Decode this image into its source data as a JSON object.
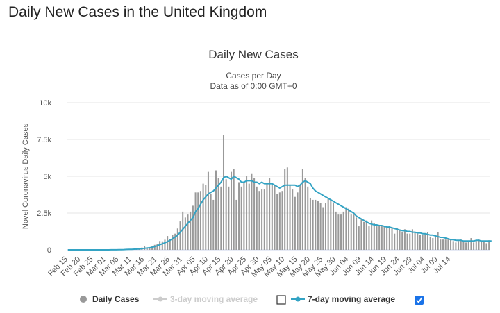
{
  "page": {
    "heading": "Daily New Cases in the United Kingdom"
  },
  "chart_data": {
    "type": "bar",
    "title": "Daily New Cases",
    "subtitle": "Cases per Day",
    "subtitle2": "Data as of 0:00 GMT+0",
    "ylabel": "Novel Coronavirus Daily Cases",
    "xlabel": "",
    "ylim": [
      0,
      10000
    ],
    "y_ticks": [
      0,
      2500,
      5000,
      7500,
      10000
    ],
    "y_tick_labels": [
      "0",
      "2.5k",
      "5k",
      "7.5k",
      "10k"
    ],
    "x_tick_labels": [
      "Feb 15",
      "Feb 20",
      "Feb 25",
      "Mar 01",
      "Mar 06",
      "Mar 11",
      "Mar 16",
      "Mar 21",
      "Mar 26",
      "Mar 31",
      "Apr 05",
      "Apr 10",
      "Apr 15",
      "Apr 20",
      "Apr 25",
      "Apr 30",
      "May 05",
      "May 10",
      "May 15",
      "May 20",
      "May 25",
      "May 30",
      "Jun 04",
      "Jun 09",
      "Jun 14",
      "Jun 19",
      "Jun 24",
      "Jun 29",
      "Jul 04",
      "Jul 09",
      "Jul 14"
    ],
    "x_tick_interval_days": 5,
    "start_date": "Feb 15",
    "colors": {
      "bars": "#999999",
      "ma7": "#33a3c4",
      "ma3": "#cccccc",
      "grid": "#e6e6e6"
    },
    "series": [
      {
        "name": "Daily Cases",
        "kind": "bar",
        "values": [
          0,
          0,
          0,
          0,
          0,
          0,
          0,
          0,
          0,
          0,
          0,
          0,
          0,
          0,
          2,
          3,
          2,
          13,
          4,
          11,
          34,
          29,
          48,
          46,
          43,
          67,
          48,
          83,
          134,
          156,
          250,
          150,
          169,
          264,
          340,
          400,
          600,
          580,
          690,
          940,
          720,
          1030,
          1100,
          1450,
          1930,
          2600,
          2200,
          2400,
          2600,
          3000,
          3900,
          3900,
          4000,
          4500,
          4400,
          5300,
          3800,
          3400,
          5400,
          4900,
          4300,
          7800,
          4800,
          4300,
          5300,
          5500,
          3400,
          4600,
          4300,
          4600,
          5000,
          4500,
          5200,
          4900,
          4300,
          4000,
          4100,
          4100,
          4500,
          4900,
          4500,
          4400,
          3800,
          3900,
          4000,
          5500,
          5600,
          4400,
          4100,
          3600,
          3900,
          4400,
          5500,
          4900,
          4300,
          3500,
          3400,
          3400,
          3300,
          3200,
          2900,
          3200,
          3500,
          3400,
          3200,
          2600,
          2400,
          2400,
          2600,
          2900,
          2800,
          2400,
          2400,
          2200,
          1600,
          2100,
          1900,
          2000,
          1600,
          2000,
          1800,
          1600,
          1700,
          1600,
          1600,
          1500,
          1600,
          1500,
          1100,
          1500,
          1300,
          1200,
          1400,
          1100,
          1100,
          1400,
          1200,
          1100,
          1000,
          1000,
          1100,
          1200,
          900,
          800,
          900,
          1200,
          700,
          700,
          700,
          750,
          700,
          600,
          500,
          600,
          700,
          600,
          500,
          600,
          800,
          500,
          600,
          700,
          550,
          600,
          450,
          650
        ]
      },
      {
        "name": "3-day moving average",
        "kind": "line",
        "enabled": false,
        "values": []
      },
      {
        "name": "7-day moving average",
        "kind": "line",
        "enabled": true,
        "values": [
          0,
          0,
          0,
          0,
          0,
          0,
          0,
          0,
          0,
          0,
          0,
          0,
          0,
          0,
          0,
          1,
          1,
          3,
          4,
          5,
          10,
          14,
          20,
          26,
          31,
          40,
          45,
          52,
          65,
          80,
          110,
          125,
          140,
          175,
          220,
          280,
          350,
          410,
          480,
          560,
          650,
          760,
          870,
          1000,
          1200,
          1400,
          1600,
          1800,
          2000,
          2200,
          2600,
          2800,
          3100,
          3400,
          3600,
          3800,
          3900,
          4000,
          4200,
          4400,
          4600,
          4900,
          5000,
          4900,
          4800,
          5000,
          4900,
          4800,
          4600,
          4600,
          4700,
          4700,
          4700,
          4600,
          4600,
          4500,
          4600,
          4500,
          4500,
          4500,
          4500,
          4400,
          4300,
          4200,
          4300,
          4400,
          4400,
          4400,
          4400,
          4400,
          4300,
          4400,
          4600,
          4700,
          4600,
          4500,
          4200,
          4000,
          3900,
          3800,
          3700,
          3600,
          3500,
          3400,
          3300,
          3200,
          3100,
          3000,
          2900,
          2800,
          2700,
          2600,
          2500,
          2300,
          2200,
          2100,
          2000,
          1900,
          1800,
          1750,
          1700,
          1700,
          1650,
          1650,
          1600,
          1550,
          1550,
          1500,
          1450,
          1400,
          1350,
          1300,
          1300,
          1250,
          1250,
          1200,
          1200,
          1150,
          1150,
          1100,
          1100,
          1050,
          1000,
          1000,
          950,
          900,
          850,
          850,
          800,
          750,
          700,
          700,
          650,
          650,
          650,
          600,
          600,
          600,
          600,
          600,
          650,
          650,
          600,
          600,
          600,
          600,
          600
        ]
      }
    ]
  },
  "legend": {
    "daily_cases": "Daily Cases",
    "ma3": "3-day moving average",
    "ma7": "7-day moving average",
    "ma3_checked": false,
    "ma7_checked": true
  }
}
